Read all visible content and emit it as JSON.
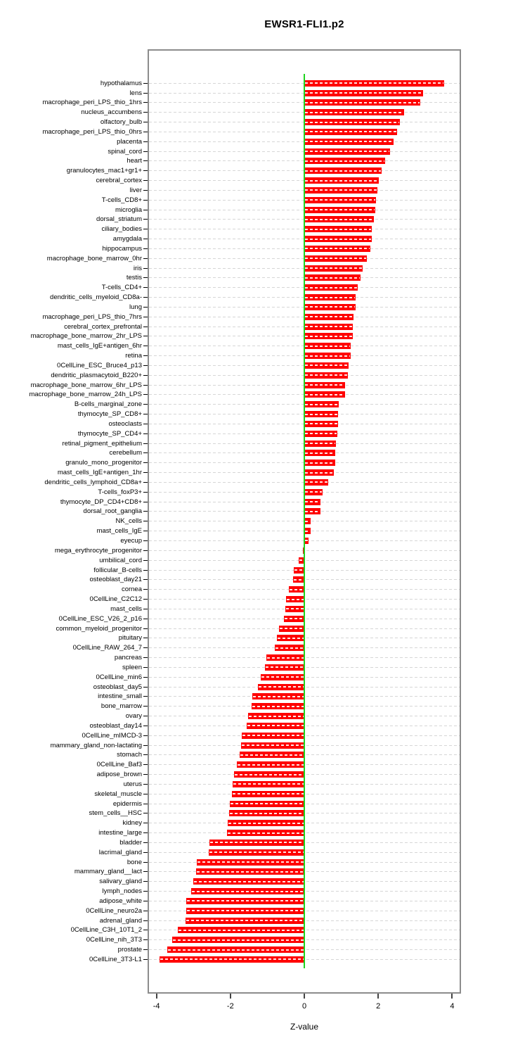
{
  "title": "EWSR1-FLI1.p2",
  "chart_data": {
    "type": "bar",
    "orientation": "horizontal",
    "title": "EWSR1-FLI1.p2",
    "xlabel": "Z-value",
    "xlim": [
      -4.24,
      4.24
    ],
    "xticks": [
      -4,
      -2,
      0,
      2,
      4
    ],
    "grid": true,
    "legend": "none",
    "bar_color": "#ff0000",
    "zero_line_color": "#1fd41f",
    "grid_color": "#d6d6d6",
    "categories": [
      "hypothalamus",
      "lens",
      "macrophage_peri_LPS_thio_1hrs",
      "nucleus_accumbens",
      "olfactory_bulb",
      "macrophage_peri_LPS_thio_0hrs",
      "placenta",
      "spinal_cord",
      "heart",
      "granulocytes_mac1+gr1+",
      "cerebral_cortex",
      "liver",
      "T-cells_CD8+",
      "microglia",
      "dorsal_striatum",
      "ciliary_bodies",
      "amygdala",
      "hippocampus",
      "macrophage_bone_marrow_0hr",
      "iris",
      "testis",
      "T-cells_CD4+",
      "dendritic_cells_myeloid_CD8a-",
      "lung",
      "macrophage_peri_LPS_thio_7hrs",
      "cerebral_cortex_prefrontal",
      "macrophage_bone_marrow_2hr_LPS",
      "mast_cells_IgE+antigen_6hr",
      "retina",
      "0CellLine_ESC_Bruce4_p13",
      "dendritic_plasmacytoid_B220+",
      "macrophage_bone_marrow_6hr_LPS",
      "macrophage_bone_marrow_24h_LPS",
      "B-cells_marginal_zone",
      "thymocyte_SP_CD8+",
      "osteoclasts",
      "thymocyte_SP_CD4+",
      "retinal_pigment_epithelium",
      "cerebellum",
      "granulo_mono_progenitor",
      "mast_cells_IgE+antigen_1hr",
      "dendritic_cells_lymphoid_CD8a+",
      "T-cells_foxP3+",
      "thymocyte_DP_CD4+CD8+",
      "dorsal_root_ganglia",
      "NK_cells",
      "mast_cells_IgE",
      "eyecup",
      "mega_erythrocyte_progenitor",
      "umbilical_cord",
      "follicular_B-cells",
      "osteoblast_day21",
      "cornea",
      "0CellLine_C2C12",
      "mast_cells",
      "0CellLine_ESC_V26_2_p16",
      "common_myeloid_progenitor",
      "pituitary",
      "0CellLine_RAW_264_7",
      "pancreas",
      "spleen",
      "0CellLine_min6",
      "osteoblast_day5",
      "intestine_small",
      "bone_marrow",
      "ovary",
      "osteoblast_day14",
      "0CellLine_mIMCD-3",
      "mammary_gland_non-lactating",
      "stomach",
      "0CellLine_Baf3",
      "adipose_brown",
      "uterus",
      "skeletal_muscle",
      "epidermis",
      "stem_cells__HSC",
      "kidney",
      "intestine_large",
      "bladder",
      "lacrimal_gland",
      "bone",
      "mammary_gland__lact",
      "salivary_gland",
      "lymph_nodes",
      "adipose_white",
      "0CellLine_neuro2a",
      "adrenal_gland",
      "0CellLine_C3H_10T1_2",
      "0CellLine_nih_3T3",
      "prostate",
      "0CellLine_3T3-L1"
    ],
    "values": [
      3.78,
      3.21,
      3.13,
      2.7,
      2.59,
      2.5,
      2.42,
      2.31,
      2.19,
      2.1,
      2.02,
      1.98,
      1.93,
      1.92,
      1.89,
      1.83,
      1.82,
      1.79,
      1.69,
      1.57,
      1.53,
      1.45,
      1.39,
      1.39,
      1.34,
      1.31,
      1.31,
      1.25,
      1.25,
      1.2,
      1.17,
      1.1,
      1.1,
      0.93,
      0.92,
      0.91,
      0.89,
      0.85,
      0.84,
      0.83,
      0.79,
      0.64,
      0.49,
      0.44,
      0.44,
      0.18,
      0.17,
      0.11,
      -0.03,
      -0.15,
      -0.28,
      -0.3,
      -0.42,
      -0.5,
      -0.51,
      -0.56,
      -0.69,
      -0.75,
      -0.79,
      -1.02,
      -1.07,
      -1.18,
      -1.26,
      -1.41,
      -1.43,
      -1.53,
      -1.55,
      -1.69,
      -1.71,
      -1.74,
      -1.82,
      -1.9,
      -1.93,
      -1.95,
      -2.02,
      -2.03,
      -2.07,
      -2.09,
      -2.57,
      -2.58,
      -2.9,
      -2.93,
      -3.0,
      -3.06,
      -3.19,
      -3.2,
      -3.21,
      -3.42,
      -3.57,
      -3.7,
      -3.91
    ]
  }
}
